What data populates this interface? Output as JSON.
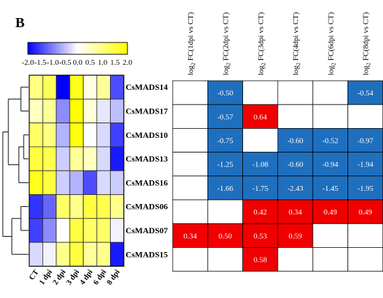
{
  "panel_label": "B",
  "colors": {
    "negative": "#1f6fbf",
    "positive": "#f00000",
    "empty": "#ffffff",
    "border": "#000000"
  },
  "chart_data": [
    {
      "type": "heatmap",
      "title": "",
      "columns": [
        "CT",
        "1 dpi",
        "2 dpi",
        "3 dpi",
        "4 dpi",
        "6 dpi",
        "8 dpi"
      ],
      "rows": [
        "CsMADS14",
        "CsMADS17",
        "CsMADS10",
        "CsMADS13",
        "CsMADS16",
        "CsMADS06",
        "CsMADS07",
        "CsMADS15"
      ],
      "values": [
        [
          1.0,
          1.3,
          -2.0,
          1.8,
          0.2,
          0.8,
          -1.4
        ],
        [
          0.5,
          0.8,
          -0.9,
          2.0,
          0.3,
          -0.2,
          -0.5
        ],
        [
          1.2,
          1.0,
          -0.6,
          1.9,
          0.0,
          -0.3,
          -1.5
        ],
        [
          1.5,
          1.4,
          -0.4,
          0.8,
          0.5,
          -0.3,
          -1.8
        ],
        [
          1.8,
          1.5,
          -0.4,
          -0.6,
          -1.4,
          -0.3,
          -0.4
        ],
        [
          -1.6,
          -1.2,
          1.2,
          0.9,
          1.5,
          1.4,
          0.9
        ],
        [
          -1.5,
          -0.9,
          0.0,
          1.5,
          1.2,
          1.2,
          -0.1
        ],
        [
          -0.3,
          -0.1,
          0.9,
          1.5,
          0.8,
          0.9,
          -1.8
        ]
      ],
      "colorbar": {
        "min": -2.0,
        "max": 2.0,
        "ticks": [
          "-2.0",
          "-1.5",
          "-1.0",
          "-0.5",
          "0.0",
          "0.5",
          "1.0",
          "1.5",
          "2.0"
        ],
        "low_color": "#0000ff",
        "mid_color": "#ffffff",
        "high_color": "#ffff00"
      },
      "dendrogram": "rows"
    },
    {
      "type": "table",
      "title": "",
      "columns": [
        {
          "prefix": "log",
          "sub": "2",
          "suffix": " FC(1dpi vs CT)"
        },
        {
          "prefix": "log",
          "sub": "2",
          "suffix": " FC(2dpi vs CT)"
        },
        {
          "prefix": "log",
          "sub": "2",
          "suffix": " FC(3dpi vs CT)"
        },
        {
          "prefix": "log",
          "sub": "2",
          "suffix": " FC(4dpi vs CT)"
        },
        {
          "prefix": "log",
          "sub": "2",
          "suffix": " FC(6dpi vs CT)"
        },
        {
          "prefix": "log",
          "sub": "2",
          "suffix": " FC(8dpi vs CT)"
        }
      ],
      "rows": [
        "CsMADS14",
        "CsMADS17",
        "CsMADS10",
        "CsMADS13",
        "CsMADS16",
        "CsMADS06",
        "CsMADS07",
        "CsMADS15"
      ],
      "cells": [
        [
          null,
          "-0.50",
          null,
          null,
          null,
          "-0.54"
        ],
        [
          null,
          "-0.57",
          "0.64",
          null,
          null,
          null
        ],
        [
          null,
          "-0.75",
          null,
          "-0.60",
          "-0.52",
          "-0.97"
        ],
        [
          null,
          "-1.25",
          "-1.08",
          "-0.60",
          "-0.94",
          "-1.94"
        ],
        [
          null,
          "-1.66",
          "-1.75",
          "-2.43",
          "-1.45",
          "-1.95"
        ],
        [
          null,
          null,
          "0.42",
          "0.34",
          "0.49",
          "0.49"
        ],
        [
          "0.34",
          "0.50",
          "0.53",
          "0.59",
          null,
          null
        ],
        [
          null,
          null,
          "0.58",
          null,
          null,
          null
        ]
      ]
    }
  ]
}
